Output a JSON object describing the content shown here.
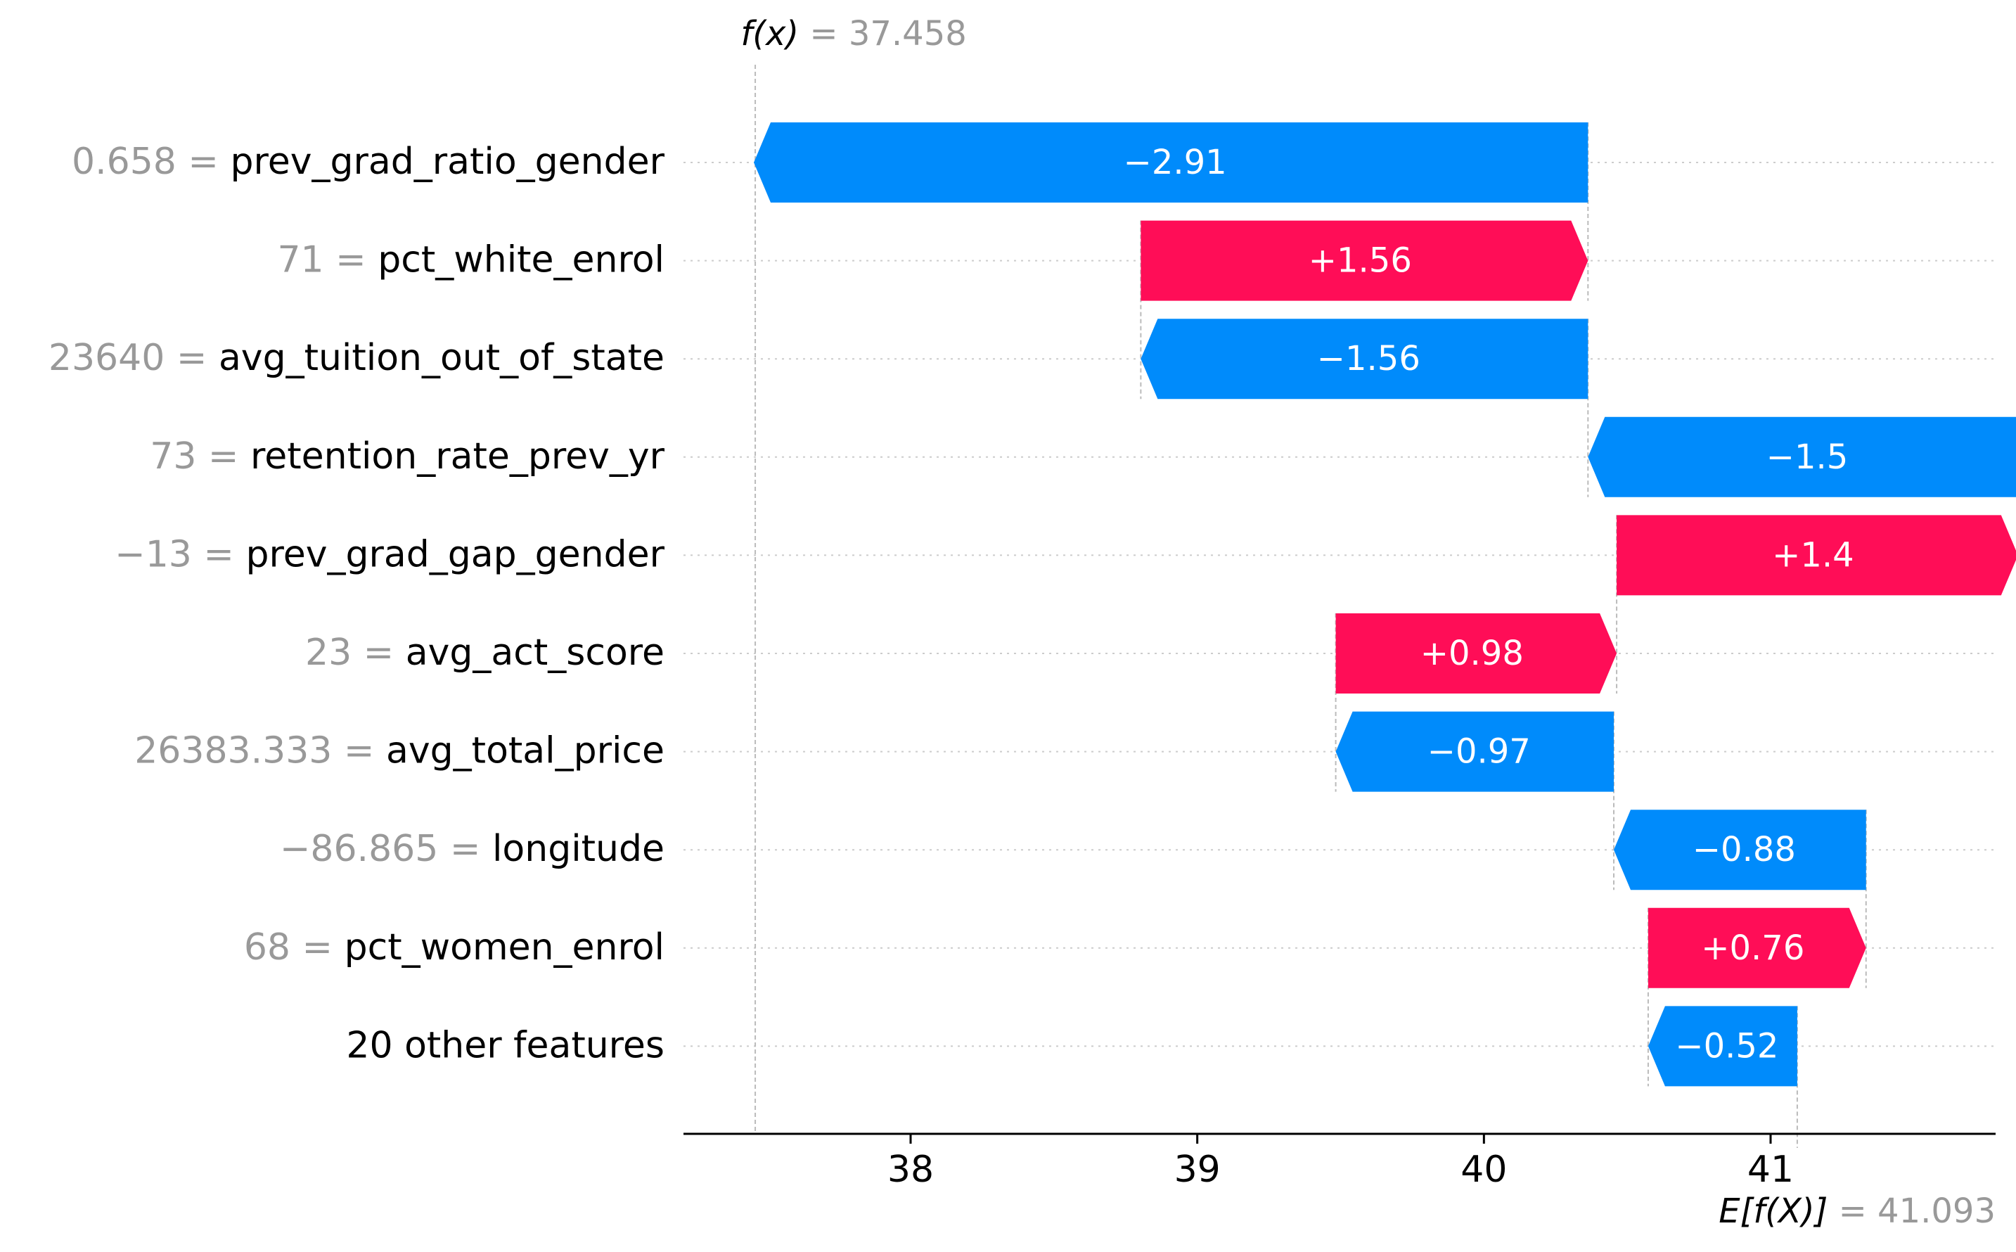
{
  "chart_data": {
    "type": "waterfall",
    "fx_label": "f(x)",
    "fx_value": "37.458",
    "fx": 37.458,
    "efx_label": "E[f(X)]",
    "efx_value": "41.093",
    "efx": 41.093,
    "xlim": [
      37.2,
      41.85
    ],
    "xticks": [
      38,
      39,
      40,
      41
    ],
    "grid": "horizontal dotted guide per feature row",
    "features": [
      {
        "value_text": "0.658",
        "name": "prev_grad_ratio_gender",
        "contribution": -2.91,
        "label": "−2.91"
      },
      {
        "value_text": "71",
        "name": "pct_white_enrol",
        "contribution": 1.56,
        "label": "+1.56"
      },
      {
        "value_text": "23640",
        "name": "avg_tuition_out_of_state",
        "contribution": -1.56,
        "label": "−1.56"
      },
      {
        "value_text": "73",
        "name": "retention_rate_prev_yr",
        "contribution": -1.5,
        "label": "−1.5"
      },
      {
        "value_text": "−13",
        "name": "prev_grad_gap_gender",
        "contribution": 1.4,
        "label": "+1.4"
      },
      {
        "value_text": "23",
        "name": "avg_act_score",
        "contribution": 0.98,
        "label": "+0.98"
      },
      {
        "value_text": "26383.333",
        "name": "avg_total_price",
        "contribution": -0.97,
        "label": "−0.97"
      },
      {
        "value_text": "−86.865",
        "name": "longitude",
        "contribution": -0.88,
        "label": "−0.88"
      },
      {
        "value_text": "68",
        "name": "pct_women_enrol",
        "contribution": 0.76,
        "label": "+0.76"
      },
      {
        "value_text": "",
        "name": "20 other features",
        "contribution": -0.52,
        "label": "−0.52"
      }
    ],
    "colors": {
      "positive": "#ff0d57",
      "negative": "#008bfb",
      "value_text": "#999999",
      "feature_text": "#000000",
      "guide": "#cccccc",
      "axis": "#000000"
    }
  }
}
